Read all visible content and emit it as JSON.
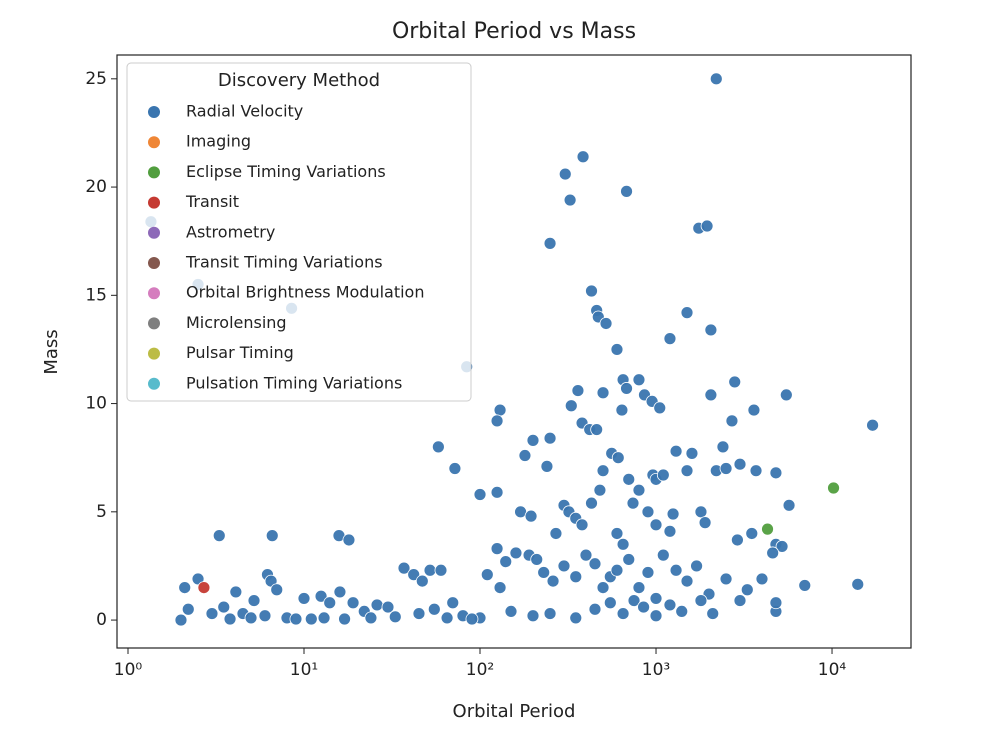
{
  "chart_data": {
    "type": "scatter",
    "title": "Orbital Period vs Mass",
    "xlabel": "Orbital Period",
    "ylabel": "Mass",
    "xscale": "log",
    "xlim": [
      0.866,
      28100
    ],
    "ylim": [
      -1.29,
      26.1
    ],
    "xticks": [
      {
        "value": 1,
        "label": "10⁰"
      },
      {
        "value": 10,
        "label": "10¹"
      },
      {
        "value": 100,
        "label": "10²"
      },
      {
        "value": 1000,
        "label": "10³"
      },
      {
        "value": 10000,
        "label": "10⁴"
      }
    ],
    "yticks": [
      0,
      5,
      10,
      15,
      20,
      25
    ],
    "legend_title": "Discovery Method",
    "legend_loc": "upper left",
    "series": [
      {
        "name": "Radial Velocity",
        "color": "#3a75af",
        "x": [
          2200,
          385,
          305,
          325,
          680,
          250,
          1750,
          1950,
          430,
          460,
          470,
          520,
          1500,
          2050,
          600,
          1200,
          360,
          330,
          380,
          420,
          460,
          500,
          650,
          680,
          800,
          860,
          950,
          1050,
          640,
          2800,
          2050,
          3600,
          5500,
          17000,
          2700,
          130,
          125,
          58,
          72,
          250,
          200,
          180,
          240,
          100,
          125,
          170,
          195,
          300,
          270,
          320,
          350,
          380,
          430,
          480,
          500,
          560,
          610,
          700,
          740,
          800,
          900,
          960,
          1000,
          1100,
          1300,
          1500,
          1600,
          2200,
          2400,
          2500,
          3000,
          3700,
          4800,
          5700,
          1250,
          1800,
          1900,
          600,
          650,
          1000,
          1200,
          2900,
          3500,
          4800,
          5200,
          4600,
          7000,
          14000,
          4800,
          4800,
          2.1,
          2.5,
          3.3,
          6.6,
          15.8,
          18.0,
          6.2,
          6.5,
          7.0,
          2.0,
          2.2,
          3.0,
          3.5,
          4.1,
          4.5,
          5.2,
          6.0,
          8,
          10,
          11,
          12.5,
          14,
          16,
          19,
          22,
          26,
          30,
          37,
          42,
          47,
          52,
          60,
          55,
          45,
          70,
          80,
          100,
          110,
          125,
          130,
          140,
          160,
          190,
          210,
          230,
          260,
          300,
          350,
          400,
          450,
          500,
          550,
          600,
          700,
          800,
          900,
          1000,
          1100,
          1300,
          1500,
          1700,
          2000,
          2500,
          3000,
          3300,
          4000,
          150,
          200,
          250,
          350,
          450,
          550,
          650,
          750,
          850,
          1000,
          1200,
          1400,
          1800,
          2100,
          3.8,
          5,
          9,
          13,
          17,
          24,
          33,
          65,
          90,
          1.35,
          2.5,
          8.5,
          84
        ],
        "values": [
          25.0,
          21.4,
          20.6,
          19.4,
          19.8,
          17.4,
          18.1,
          18.2,
          15.2,
          14.3,
          14.0,
          13.7,
          14.2,
          13.4,
          12.5,
          13.0,
          10.6,
          9.9,
          9.1,
          8.8,
          8.8,
          10.5,
          11.1,
          10.7,
          11.1,
          10.4,
          10.1,
          9.8,
          9.7,
          11.0,
          10.4,
          9.7,
          10.4,
          9.0,
          9.2,
          9.7,
          9.2,
          8.0,
          7.0,
          8.4,
          8.3,
          7.6,
          7.1,
          5.8,
          5.9,
          5.0,
          4.8,
          5.3,
          4.0,
          5.0,
          4.7,
          4.4,
          5.4,
          6.0,
          6.9,
          7.7,
          7.5,
          6.5,
          5.4,
          6.0,
          5.0,
          6.7,
          6.5,
          6.7,
          7.8,
          6.9,
          7.7,
          6.9,
          8.0,
          7.0,
          7.2,
          6.9,
          6.8,
          5.3,
          4.9,
          5.0,
          4.5,
          4.0,
          3.5,
          4.4,
          4.1,
          3.7,
          4.0,
          3.5,
          3.4,
          3.1,
          1.6,
          1.65,
          0.4,
          0.8,
          1.5,
          1.9,
          3.9,
          3.9,
          3.9,
          3.7,
          2.1,
          1.8,
          1.4,
          0,
          0.5,
          0.3,
          0.6,
          1.3,
          0.3,
          0.9,
          0.2,
          0.1,
          1.0,
          0.05,
          1.1,
          0.8,
          1.3,
          0.8,
          0.4,
          0.7,
          0.6,
          2.4,
          2.1,
          1.8,
          2.3,
          2.3,
          0.5,
          0.3,
          0.8,
          0.2,
          0.1,
          2.1,
          3.3,
          1.5,
          2.7,
          3.1,
          3.0,
          2.8,
          2.2,
          1.8,
          2.5,
          2.0,
          3.0,
          2.6,
          1.5,
          2.0,
          2.3,
          2.8,
          1.5,
          2.2,
          1.0,
          3.0,
          2.3,
          1.8,
          2.5,
          1.2,
          1.9,
          0.9,
          1.4,
          1.9,
          0.4,
          0.2,
          0.3,
          0.1,
          0.5,
          0.8,
          0.3,
          0.9,
          0.6,
          0.2,
          0.7,
          0.4,
          0.9,
          0.3,
          0.05,
          0.1,
          0.05,
          0.1,
          0.05,
          0.1,
          0.15,
          0.1,
          0.05,
          18.4,
          15.5,
          14.4,
          11.7
        ]
      },
      {
        "name": "Imaging",
        "color": "#ef8636",
        "x": [],
        "values": []
      },
      {
        "name": "Eclipse Timing Variations",
        "color": "#519e3e",
        "x": [
          4300,
          10200
        ],
        "values": [
          4.2,
          6.1
        ]
      },
      {
        "name": "Transit",
        "color": "#c53a32",
        "x": [
          2.7
        ],
        "values": [
          1.5
        ]
      },
      {
        "name": "Astrometry",
        "color": "#8d69b8",
        "x": [],
        "values": []
      },
      {
        "name": "Transit Timing Variations",
        "color": "#84584e",
        "x": [],
        "values": []
      },
      {
        "name": "Orbital Brightness Modulation",
        "color": "#d57dbe",
        "x": [],
        "values": []
      },
      {
        "name": "Microlensing",
        "color": "#7f7f7f",
        "x": [],
        "values": []
      },
      {
        "name": "Pulsar Timing",
        "color": "#bcbc45",
        "x": [],
        "values": []
      },
      {
        "name": "Pulsation Timing Variations",
        "color": "#58bbcc",
        "x": [],
        "values": []
      }
    ]
  }
}
